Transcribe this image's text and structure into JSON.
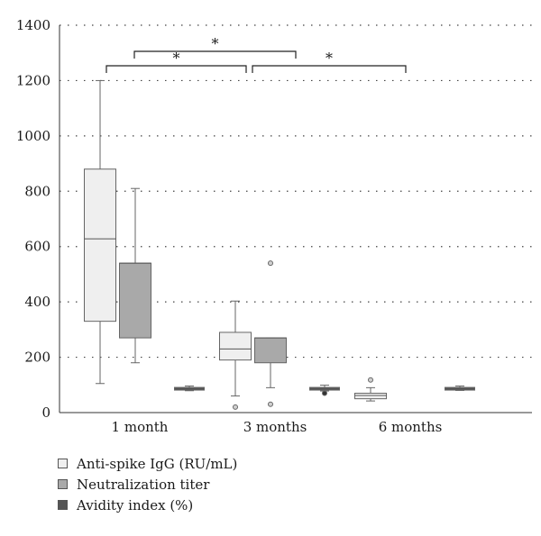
{
  "chart_data": {
    "type": "box",
    "title": "",
    "xlabel": "",
    "ylabel": "",
    "ylim": [
      0,
      1400
    ],
    "yticks": [
      0,
      200,
      400,
      600,
      800,
      1000,
      1200,
      1400
    ],
    "grid": "horizontal dotted",
    "categories": [
      "1 month",
      "3 months",
      "6 months"
    ],
    "series": [
      {
        "name": "Anti-spike IgG (RU/mL)",
        "color": "#efefef",
        "boxes": [
          {
            "category": "1 month",
            "min": 105,
            "q1": 330,
            "median": 628,
            "q3": 880,
            "max": 1200,
            "outliers": []
          },
          {
            "category": "3 months",
            "min": 60,
            "q1": 190,
            "median": 230,
            "q3": 290,
            "max": 403,
            "outliers": [
              20
            ]
          },
          {
            "category": "6 months",
            "min": 42,
            "q1": 50,
            "median": 62,
            "q3": 70,
            "max": 90,
            "outliers": [
              118
            ]
          }
        ]
      },
      {
        "name": "Neutralization titer",
        "color": "#a9a9a9",
        "boxes": [
          {
            "category": "1 month",
            "min": 180,
            "q1": 270,
            "median": 540,
            "q3": 540,
            "max": 810,
            "outliers": []
          },
          {
            "category": "3 months",
            "min": 90,
            "q1": 180,
            "median": 270,
            "q3": 270,
            "max": 270,
            "outliers": [
              540,
              30
            ]
          }
        ]
      },
      {
        "name": "Avidity index (%)",
        "color": "#555555",
        "boxes": [
          {
            "category": "1 month",
            "min": 79,
            "q1": 84,
            "median": 88,
            "q3": 91,
            "max": 96,
            "outliers": []
          },
          {
            "category": "3 months",
            "min": 78,
            "q1": 84,
            "median": 88,
            "q3": 91,
            "max": 99,
            "outliers": [
              70
            ]
          },
          {
            "category": "6 months",
            "min": 80,
            "q1": 84,
            "median": 88,
            "q3": 91,
            "max": 96,
            "outliers": []
          }
        ]
      }
    ],
    "significance": [
      {
        "from": "1 month",
        "to": "3 months",
        "label": "*",
        "level": 1
      },
      {
        "from": "1 month",
        "to": "3 months",
        "label": "*",
        "level": 2
      },
      {
        "from": "3 months",
        "to": "6 months",
        "label": "*",
        "level": 1
      }
    ],
    "legend": {
      "position": "bottom-left"
    }
  }
}
